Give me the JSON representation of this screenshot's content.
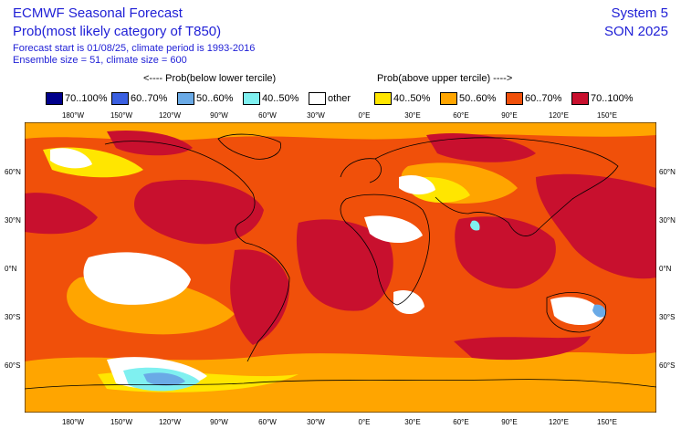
{
  "header": {
    "title_line1": "ECMWF Seasonal Forecast",
    "title_line2": "Prob(most likely category of T850)",
    "info_line1": "Forecast start is 01/08/25, climate period is 1993-2016",
    "info_line2": "Ensemble size = 51, climate size = 600",
    "system": "System 5",
    "season": "SON 2025"
  },
  "legend": {
    "below_label": "<---- Prob(below lower tercile)",
    "above_label": "Prob(above upper tercile) ---->",
    "items": [
      {
        "label": "70..100%",
        "color": "#00008b"
      },
      {
        "label": "60..70%",
        "color": "#3a5fe0"
      },
      {
        "label": "50..60%",
        "color": "#6aaae6"
      },
      {
        "label": "40..50%",
        "color": "#7ff0f0"
      },
      {
        "label": "other",
        "color": "#ffffff"
      },
      {
        "label": "40..50%",
        "color": "#ffe600"
      },
      {
        "label": "50..60%",
        "color": "#ffa500"
      },
      {
        "label": "60..70%",
        "color": "#f0500a"
      },
      {
        "label": "70..100%",
        "color": "#c8102e"
      }
    ]
  },
  "axes": {
    "lon_ticks": [
      "180°W",
      "150°W",
      "120°W",
      "90°W",
      "60°W",
      "30°W",
      "0°E",
      "30°E",
      "60°E",
      "90°E",
      "120°E",
      "150°E"
    ],
    "lat_ticks": [
      "60°N",
      "30°N",
      "0°N",
      "30°S",
      "60°S"
    ]
  }
}
